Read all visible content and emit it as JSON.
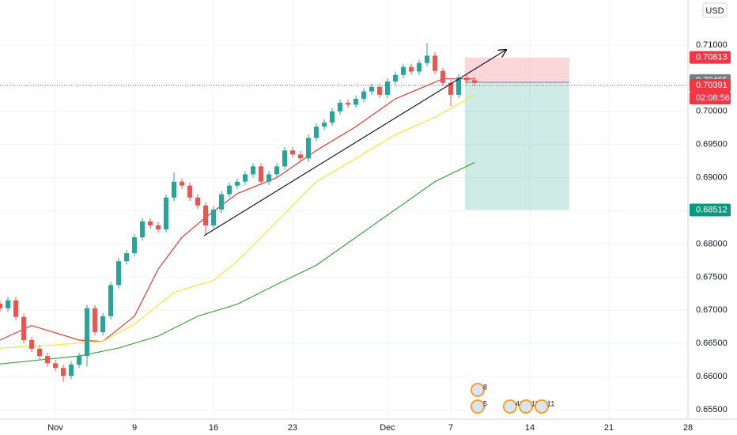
{
  "chart_data": {
    "type": "candlestick",
    "currency": "USD",
    "xlim": [
      -3.5,
      40
    ],
    "ylim": [
      0.65357,
      0.7168
    ],
    "grid": true,
    "xticks": [
      {
        "value": 0,
        "label": "Nov"
      },
      {
        "value": 5,
        "label": "9"
      },
      {
        "value": 10,
        "label": "16"
      },
      {
        "value": 15,
        "label": "23"
      },
      {
        "value": 21,
        "label": "Dec"
      },
      {
        "value": 25,
        "label": "7"
      },
      {
        "value": 30,
        "label": "14"
      },
      {
        "value": 35,
        "label": "21"
      },
      {
        "value": 40,
        "label": "28"
      }
    ],
    "yticks": [
      {
        "value": 0.655,
        "label": "0.65500"
      },
      {
        "value": 0.66,
        "label": "0.66000"
      },
      {
        "value": 0.665,
        "label": "0.66500"
      },
      {
        "value": 0.67,
        "label": "0.67000"
      },
      {
        "value": 0.675,
        "label": "0.67500"
      },
      {
        "value": 0.68,
        "label": "0.68000"
      },
      {
        "value": 0.685,
        "label": "0.68500"
      },
      {
        "value": 0.69,
        "label": "0.69000"
      },
      {
        "value": 0.695,
        "label": "0.69500"
      },
      {
        "value": 0.7,
        "label": "0.70000"
      },
      {
        "value": 0.71,
        "label": "0.71000"
      }
    ],
    "up_color": "#26a69a",
    "down_color": "#ef5350",
    "candles": {
      "x": [
        -3.5,
        -3,
        -2.5,
        -2,
        -1.5,
        -1,
        -0.5,
        0,
        0.5,
        1,
        1.5,
        2,
        2.5,
        3,
        3.5,
        4,
        4.5,
        5,
        5.5,
        6,
        6.5,
        7,
        7.5,
        8,
        8.5,
        9,
        9.5,
        10,
        10.5,
        11,
        11.5,
        12,
        12.5,
        13,
        13.5,
        14,
        14.5,
        15,
        15.5,
        16,
        16.5,
        17,
        17.5,
        18,
        18.5,
        19,
        19.5,
        20,
        20.5,
        21,
        21.5,
        22,
        22.5,
        23,
        23.5,
        24,
        24.5,
        25,
        25.5,
        26,
        26.5
      ],
      "open": [
        0.671,
        0.6703,
        0.6715,
        0.669,
        0.6655,
        0.6642,
        0.6631,
        0.662,
        0.6613,
        0.6601,
        0.6618,
        0.6631,
        0.6703,
        0.6667,
        0.6691,
        0.6738,
        0.6774,
        0.6786,
        0.681,
        0.6834,
        0.6828,
        0.6822,
        0.687,
        0.6894,
        0.6888,
        0.687,
        0.6858,
        0.6828,
        0.6852,
        0.6875,
        0.6888,
        0.6894,
        0.6905,
        0.6917,
        0.6894,
        0.6905,
        0.6917,
        0.6941,
        0.6935,
        0.6929,
        0.696,
        0.6977,
        0.6983,
        0.7,
        0.7013,
        0.701,
        0.7019,
        0.703,
        0.7037,
        0.7025,
        0.7045,
        0.7055,
        0.7067,
        0.706,
        0.7073,
        0.7084,
        0.7061,
        0.7043,
        0.7025,
        0.7051,
        0.7047
      ],
      "high": [
        0.6715,
        0.672,
        0.672,
        0.6695,
        0.666,
        0.6647,
        0.6636,
        0.6625,
        0.6618,
        0.6623,
        0.6636,
        0.6708,
        0.6708,
        0.6696,
        0.6743,
        0.6779,
        0.6791,
        0.6815,
        0.6839,
        0.6839,
        0.6833,
        0.6875,
        0.6908,
        0.6899,
        0.6893,
        0.6875,
        0.6863,
        0.6857,
        0.688,
        0.6893,
        0.6899,
        0.691,
        0.6922,
        0.6922,
        0.691,
        0.6922,
        0.6946,
        0.6946,
        0.694,
        0.6965,
        0.6982,
        0.6988,
        0.7005,
        0.7018,
        0.7018,
        0.7024,
        0.7035,
        0.7042,
        0.7042,
        0.705,
        0.706,
        0.7072,
        0.7072,
        0.7078,
        0.7103,
        0.7089,
        0.7066,
        0.7048,
        0.7056,
        0.7056,
        0.7052
      ],
      "low": [
        0.6698,
        0.6698,
        0.6685,
        0.665,
        0.6637,
        0.6626,
        0.6615,
        0.6608,
        0.6592,
        0.6596,
        0.6613,
        0.6615,
        0.6662,
        0.6662,
        0.6686,
        0.6733,
        0.6769,
        0.6781,
        0.6805,
        0.6823,
        0.6817,
        0.6817,
        0.6865,
        0.6883,
        0.6865,
        0.6853,
        0.6815,
        0.6823,
        0.6847,
        0.687,
        0.6883,
        0.6889,
        0.69,
        0.6889,
        0.6889,
        0.69,
        0.6912,
        0.693,
        0.6924,
        0.6924,
        0.6955,
        0.6972,
        0.6978,
        0.6995,
        0.7005,
        0.7005,
        0.7014,
        0.7025,
        0.702,
        0.702,
        0.704,
        0.705,
        0.7055,
        0.7055,
        0.7068,
        0.7056,
        0.7038,
        0.7008,
        0.702,
        0.7042,
        0.7038
      ],
      "close": [
        0.6703,
        0.6715,
        0.669,
        0.6655,
        0.6642,
        0.6631,
        0.662,
        0.6613,
        0.6601,
        0.6618,
        0.6631,
        0.6703,
        0.6667,
        0.6691,
        0.6738,
        0.6774,
        0.6786,
        0.681,
        0.6834,
        0.6828,
        0.6822,
        0.687,
        0.6894,
        0.6888,
        0.687,
        0.6858,
        0.6828,
        0.6852,
        0.6875,
        0.6888,
        0.6894,
        0.6905,
        0.6917,
        0.6894,
        0.6905,
        0.6917,
        0.6941,
        0.6935,
        0.6929,
        0.696,
        0.6977,
        0.6983,
        0.7,
        0.7013,
        0.701,
        0.7019,
        0.703,
        0.7037,
        0.7025,
        0.7045,
        0.7055,
        0.7067,
        0.706,
        0.7073,
        0.7084,
        0.7061,
        0.7043,
        0.7025,
        0.7051,
        0.7047,
        0.7043
      ]
    },
    "series": [
      {
        "color": "#e53935",
        "x": [
          -3.5,
          -1.5,
          1.5,
          3,
          5,
          6.5,
          8,
          9.5,
          11.5,
          14,
          16.5,
          19,
          21.5,
          24.5,
          26.5
        ],
        "values": [
          0.6655,
          0.6677,
          0.6655,
          0.6653,
          0.6691,
          0.6762,
          0.681,
          0.684,
          0.6876,
          0.69,
          0.6941,
          0.6977,
          0.7019,
          0.7049,
          0.7049
        ]
      },
      {
        "color": "#f5e63c",
        "x": [
          -3.5,
          -0.5,
          3,
          5,
          7.5,
          10,
          11.5,
          14,
          16.5,
          19,
          21.5,
          24,
          26.5
        ],
        "values": [
          0.6643,
          0.6647,
          0.6653,
          0.6679,
          0.6727,
          0.6745,
          0.6774,
          0.6834,
          0.6894,
          0.6929,
          0.6965,
          0.6991,
          0.7025
        ]
      },
      {
        "color": "#43a047",
        "x": [
          -3.5,
          1.5,
          4,
          6.5,
          9,
          11.5,
          14,
          16.5,
          19,
          21.5,
          24,
          26.5
        ],
        "values": [
          0.6619,
          0.6631,
          0.6643,
          0.6661,
          0.6691,
          0.6709,
          0.6739,
          0.6768,
          0.681,
          0.6852,
          0.6894,
          0.6923
        ]
      }
    ],
    "position": {
      "x": [
        25.9,
        32.5
      ],
      "stop": 0.70813,
      "entry": 0.7044,
      "target": 0.68512
    },
    "price_labels": [
      {
        "value": 0.70813,
        "label": "0.70813",
        "color": "#f23645"
      },
      {
        "value": 0.70465,
        "label": "0.70465",
        "color": "#787b86"
      },
      {
        "value": 0.70391,
        "label": "0.70391",
        "color": "#f23645"
      },
      {
        "value": 0.68512,
        "label": "0.68512",
        "color": "#089981"
      }
    ],
    "countdown": "02:08:56",
    "events": [
      {
        "x": 26.7,
        "label": "5"
      },
      {
        "x": 26.7,
        "label": "8"
      },
      {
        "x": 28.75,
        "label": "41"
      },
      {
        "x": 29.75,
        "label": "11"
      },
      {
        "x": 30.75,
        "label": "11"
      }
    ]
  }
}
